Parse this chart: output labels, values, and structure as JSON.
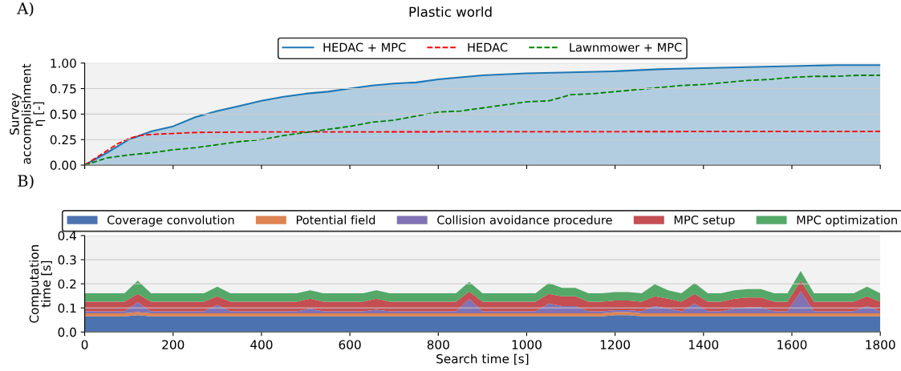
{
  "chart_data": [
    {
      "type": "line",
      "title": "Plastic world",
      "ylabel": "Survey\naccomplishment\nη [-]",
      "annotations": [
        "A)"
      ],
      "xlim": [
        0,
        1800
      ],
      "xticks": [
        0,
        200,
        400,
        600,
        800,
        1000,
        1200,
        1400,
        1600,
        1800
      ],
      "ylim": [
        0,
        1
      ],
      "yticks": [
        {
          "value": 0,
          "label": "0.00"
        },
        {
          "value": 0.25,
          "label": "0.25"
        },
        {
          "value": 0.5,
          "label": "0.50"
        },
        {
          "value": 0.75,
          "label": "0.75"
        },
        {
          "value": 1,
          "label": "1.00"
        }
      ],
      "tick_labels": "y",
      "grid": "y",
      "legend": "top",
      "series": [
        {
          "name": "HEDAC + MPC",
          "type": "area",
          "color": "#1f77b4",
          "line_style": "solid",
          "x": [
            0,
            50,
            100,
            150,
            200,
            250,
            300,
            350,
            400,
            450,
            500,
            550,
            600,
            650,
            700,
            750,
            800,
            850,
            900,
            950,
            1000,
            1100,
            1200,
            1300,
            1400,
            1500,
            1600,
            1700,
            1800
          ],
          "values": [
            0,
            0.12,
            0.25,
            0.33,
            0.38,
            0.47,
            0.53,
            0.58,
            0.63,
            0.67,
            0.7,
            0.72,
            0.75,
            0.78,
            0.8,
            0.81,
            0.84,
            0.86,
            0.88,
            0.89,
            0.9,
            0.91,
            0.92,
            0.94,
            0.95,
            0.96,
            0.97,
            0.98,
            0.98
          ]
        },
        {
          "name": "HEDAC",
          "type": "line",
          "color": "#ff0000",
          "line_style": "dashed",
          "x": [
            0,
            25,
            50,
            75,
            100,
            125,
            150,
            200,
            250,
            400,
            1800
          ],
          "values": [
            0,
            0.07,
            0.14,
            0.21,
            0.26,
            0.29,
            0.3,
            0.31,
            0.32,
            0.325,
            0.33
          ]
        },
        {
          "name": "Lawnmower + MPC",
          "type": "line",
          "color": "#008000",
          "line_style": "dashed",
          "x": [
            0,
            50,
            100,
            150,
            200,
            250,
            300,
            350,
            400,
            450,
            500,
            550,
            600,
            650,
            700,
            750,
            800,
            850,
            900,
            950,
            1000,
            1050,
            1100,
            1150,
            1200,
            1250,
            1300,
            1350,
            1400,
            1450,
            1500,
            1550,
            1600,
            1650,
            1700,
            1750,
            1800
          ],
          "values": [
            0,
            0.07,
            0.1,
            0.12,
            0.15,
            0.17,
            0.2,
            0.23,
            0.25,
            0.29,
            0.32,
            0.35,
            0.38,
            0.42,
            0.44,
            0.48,
            0.52,
            0.53,
            0.56,
            0.59,
            0.62,
            0.63,
            0.69,
            0.7,
            0.72,
            0.74,
            0.76,
            0.78,
            0.79,
            0.81,
            0.83,
            0.84,
            0.86,
            0.87,
            0.87,
            0.88,
            0.88
          ]
        }
      ]
    },
    {
      "type": "area",
      "stacked": true,
      "xlabel": "Search time [s]",
      "ylabel": "Computation\ntime [s]",
      "annotations": [
        "B)"
      ],
      "xlim": [
        0,
        1800
      ],
      "xticks": [
        0,
        200,
        400,
        600,
        800,
        1000,
        1200,
        1400,
        1600,
        1800
      ],
      "ylim": [
        0,
        0.4
      ],
      "yticks": [
        {
          "value": 0,
          "label": "0.0"
        },
        {
          "value": 0.1,
          "label": "0.1"
        },
        {
          "value": 0.2,
          "label": "0.2"
        },
        {
          "value": 0.3,
          "label": "0.3"
        },
        {
          "value": 0.4,
          "label": "0.4"
        }
      ],
      "grid": "y",
      "legend": "top",
      "x": [
        0,
        30,
        60,
        90,
        120,
        150,
        180,
        210,
        240,
        270,
        300,
        330,
        360,
        390,
        420,
        450,
        480,
        510,
        540,
        570,
        600,
        630,
        660,
        690,
        720,
        750,
        780,
        810,
        840,
        870,
        900,
        930,
        960,
        990,
        1020,
        1050,
        1080,
        1110,
        1140,
        1170,
        1200,
        1230,
        1260,
        1290,
        1320,
        1350,
        1380,
        1410,
        1440,
        1470,
        1500,
        1530,
        1560,
        1590,
        1620,
        1650,
        1680,
        1710,
        1740,
        1770,
        1800
      ],
      "series": [
        {
          "name": "Coverage convolution",
          "color": "#4c72b0",
          "values": [
            0.065,
            0.065,
            0.065,
            0.065,
            0.07,
            0.065,
            0.065,
            0.065,
            0.065,
            0.065,
            0.065,
            0.065,
            0.065,
            0.065,
            0.065,
            0.065,
            0.065,
            0.065,
            0.065,
            0.065,
            0.065,
            0.065,
            0.065,
            0.065,
            0.065,
            0.065,
            0.065,
            0.065,
            0.065,
            0.065,
            0.065,
            0.065,
            0.065,
            0.065,
            0.065,
            0.065,
            0.065,
            0.065,
            0.065,
            0.065,
            0.07,
            0.07,
            0.065,
            0.065,
            0.065,
            0.065,
            0.065,
            0.065,
            0.065,
            0.065,
            0.065,
            0.065,
            0.065,
            0.065,
            0.065,
            0.065,
            0.065,
            0.065,
            0.065,
            0.065,
            0.065
          ]
        },
        {
          "name": "Potential field",
          "color": "#dd8452",
          "values": [
            0.013,
            0.013,
            0.013,
            0.013,
            0.013,
            0.013,
            0.013,
            0.013,
            0.013,
            0.013,
            0.013,
            0.013,
            0.013,
            0.013,
            0.013,
            0.013,
            0.013,
            0.013,
            0.013,
            0.013,
            0.013,
            0.013,
            0.013,
            0.013,
            0.013,
            0.013,
            0.013,
            0.013,
            0.013,
            0.013,
            0.013,
            0.013,
            0.013,
            0.013,
            0.013,
            0.013,
            0.013,
            0.013,
            0.013,
            0.013,
            0.013,
            0.013,
            0.013,
            0.013,
            0.013,
            0.013,
            0.013,
            0.013,
            0.013,
            0.013,
            0.013,
            0.013,
            0.013,
            0.013,
            0.013,
            0.013,
            0.013,
            0.013,
            0.013,
            0.013,
            0.013
          ]
        },
        {
          "name": "Collision avoidance procedure",
          "color": "#8172b3",
          "values": [
            0.008,
            0.008,
            0.008,
            0.008,
            0.04,
            0.008,
            0.008,
            0.008,
            0.008,
            0.008,
            0.035,
            0.008,
            0.008,
            0.008,
            0.008,
            0.008,
            0.008,
            0.02,
            0.008,
            0.008,
            0.008,
            0.008,
            0.015,
            0.008,
            0.008,
            0.008,
            0.008,
            0.008,
            0.008,
            0.06,
            0.008,
            0.008,
            0.008,
            0.008,
            0.008,
            0.04,
            0.03,
            0.03,
            0.008,
            0.008,
            0.008,
            0.008,
            0.008,
            0.03,
            0.02,
            0.008,
            0.04,
            0.008,
            0.008,
            0.02,
            0.025,
            0.025,
            0.008,
            0.008,
            0.09,
            0.008,
            0.008,
            0.008,
            0.008,
            0.03,
            0.008
          ]
        },
        {
          "name": "MPC setup",
          "color": "#c44e52",
          "values": [
            0.04,
            0.04,
            0.04,
            0.04,
            0.035,
            0.04,
            0.04,
            0.04,
            0.04,
            0.04,
            0.035,
            0.04,
            0.04,
            0.04,
            0.04,
            0.04,
            0.04,
            0.04,
            0.04,
            0.04,
            0.04,
            0.04,
            0.045,
            0.04,
            0.04,
            0.04,
            0.04,
            0.04,
            0.04,
            0.03,
            0.04,
            0.04,
            0.04,
            0.04,
            0.04,
            0.04,
            0.04,
            0.04,
            0.04,
            0.04,
            0.04,
            0.04,
            0.04,
            0.04,
            0.04,
            0.04,
            0.04,
            0.04,
            0.04,
            0.04,
            0.04,
            0.04,
            0.04,
            0.04,
            0.045,
            0.04,
            0.04,
            0.04,
            0.04,
            0.04,
            0.04
          ]
        },
        {
          "name": "MPC optimization",
          "color": "#55a868",
          "values": [
            0.035,
            0.035,
            0.035,
            0.035,
            0.055,
            0.035,
            0.035,
            0.035,
            0.035,
            0.035,
            0.04,
            0.035,
            0.035,
            0.035,
            0.035,
            0.035,
            0.035,
            0.035,
            0.035,
            0.035,
            0.035,
            0.035,
            0.035,
            0.035,
            0.035,
            0.035,
            0.035,
            0.035,
            0.035,
            0.04,
            0.035,
            0.035,
            0.035,
            0.035,
            0.035,
            0.045,
            0.035,
            0.035,
            0.035,
            0.035,
            0.035,
            0.035,
            0.035,
            0.05,
            0.035,
            0.035,
            0.045,
            0.035,
            0.035,
            0.035,
            0.035,
            0.035,
            0.035,
            0.035,
            0.04,
            0.035,
            0.035,
            0.035,
            0.035,
            0.04,
            0.035
          ]
        }
      ]
    }
  ]
}
